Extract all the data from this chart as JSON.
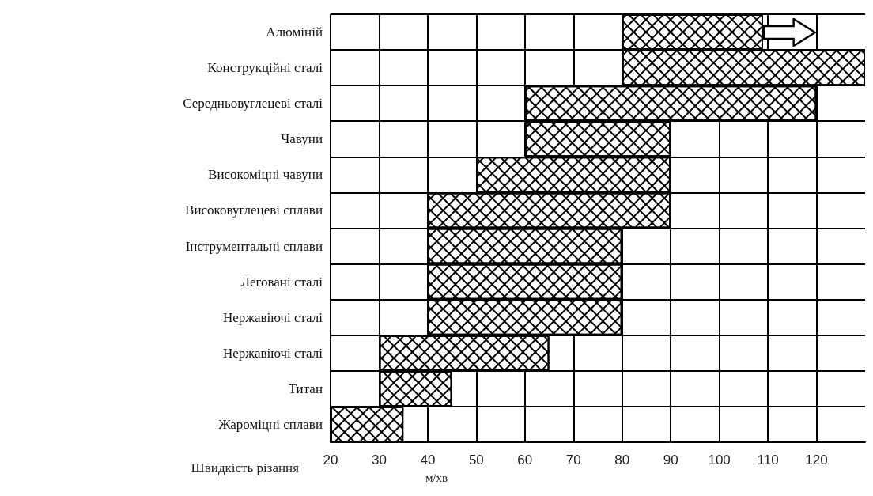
{
  "chart_data": {
    "type": "bar",
    "orientation": "horizontal",
    "xlabel": "Швидкість різання",
    "annotations": [
      "м/хв"
    ],
    "categories": [
      "Алюміній",
      "Конструкційні сталі",
      "Середньовуглецеві сталі",
      "Чавуни",
      "Високоміцні чавуни",
      "Високовуглецеві сплави",
      "Інструментальні сплави",
      "Леговані сталі",
      "Нержавіючі сталі",
      "Нержавіючі сталі",
      "Титан",
      "Жароміцні сплави"
    ],
    "base": [
      80,
      80,
      60,
      60,
      50,
      40,
      40,
      40,
      40,
      30,
      30,
      20
    ],
    "values": [
      29,
      50,
      60,
      30,
      40,
      50,
      40,
      40,
      40,
      35,
      15,
      15
    ],
    "color": "#ffffff",
    "xlim": [
      20,
      130
    ],
    "xticks": [
      20,
      30,
      40,
      50,
      60,
      70,
      80,
      90,
      100,
      110,
      120
    ],
    "grid": true
  }
}
